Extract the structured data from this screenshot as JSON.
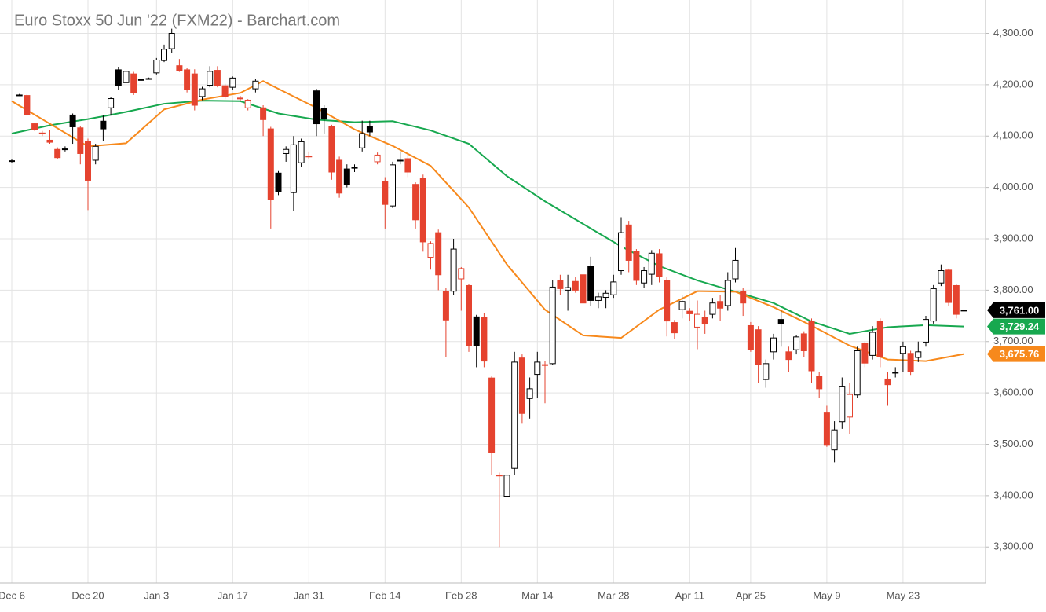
{
  "chart_data": {
    "type": "candlestick",
    "title": "Euro Stoxx 50 Jun '22 (FXM22) - Barchart.com",
    "categories": [
      "Dec 6",
      null,
      null,
      null,
      null,
      null,
      null,
      null,
      null,
      null,
      "Dec 20",
      null,
      null,
      null,
      null,
      null,
      null,
      null,
      null,
      "Jan 3",
      null,
      null,
      null,
      null,
      null,
      null,
      null,
      null,
      null,
      "Jan 17",
      null,
      null,
      null,
      null,
      null,
      null,
      null,
      null,
      null,
      "Jan 31",
      null,
      null,
      null,
      null,
      null,
      null,
      null,
      null,
      null,
      "Feb 14",
      null,
      null,
      null,
      null,
      null,
      null,
      null,
      null,
      null,
      "Feb 28",
      null,
      null,
      null,
      null,
      null,
      null,
      null,
      null,
      null,
      "Mar 14",
      null,
      null,
      null,
      null,
      null,
      null,
      null,
      null,
      null,
      "Mar 28",
      null,
      null,
      null,
      null,
      null,
      null,
      null,
      null,
      null,
      "Apr 11",
      null,
      null,
      null,
      null,
      null,
      null,
      null,
      "Apr 25",
      null,
      null,
      null,
      null,
      null,
      null,
      null,
      null,
      null,
      "May 9",
      null,
      null,
      null,
      null,
      null,
      null,
      null,
      null,
      null,
      "May 23",
      null,
      null,
      null,
      null,
      null,
      null,
      null,
      null
    ],
    "candles": {
      "open": [
        4052,
        4180,
        4179,
        4124,
        4106,
        4092,
        4074,
        4075,
        4141,
        4116,
        4089,
        4053,
        4129,
        4155,
        4229,
        4204,
        4221,
        4210,
        4212,
        4223,
        4247,
        4270,
        4237,
        4229,
        4221,
        4177,
        4199,
        4228,
        4198,
        4195,
        4174,
        4155,
        4192,
        4155,
        4114,
        4028,
        4066,
        3990,
        4048,
        4061,
        4188,
        4154,
        4118,
        4053,
        4036,
        4039,
        4077,
        4118,
        4050,
        4011,
        3964,
        4053,
        4056,
        4006,
        4017,
        3864,
        3912,
        3798,
        3798,
        3822,
        3809,
        3748,
        3747,
        3629,
        3440,
        3399,
        3453,
        3668,
        3589,
        3636,
        3655,
        3657,
        3819,
        3800,
        3817,
        3830,
        3846,
        3780,
        3786,
        3791,
        3838,
        3927,
        3875,
        3814,
        3831,
        3871,
        3819,
        3737,
        3762,
        3759,
        3728,
        3747,
        3753,
        3778,
        3770,
        3822,
        3798,
        3731,
        3723,
        3626,
        3680,
        3743,
        3680,
        3684,
        3715,
        3739,
        3633,
        3561,
        3489,
        3544,
        3553,
        3596,
        3696,
        3673,
        3739,
        3627,
        3640,
        3677,
        3677,
        3669,
        3699,
        3740,
        3814,
        3839,
        3809,
        3761
      ],
      "high": [
        4056,
        4182,
        4181,
        4126,
        4110,
        4112,
        4078,
        4080,
        4144,
        4120,
        4095,
        4085,
        4140,
        4176,
        4235,
        4228,
        4225,
        4212,
        4214,
        4252,
        4278,
        4309,
        4250,
        4233,
        4230,
        4196,
        4236,
        4236,
        4202,
        4216,
        4178,
        4172,
        4212,
        4160,
        4118,
        4032,
        4080,
        4100,
        4095,
        4070,
        4192,
        4160,
        4122,
        4060,
        4045,
        4045,
        4130,
        4130,
        4068,
        4020,
        4050,
        4070,
        4065,
        4010,
        4025,
        3895,
        3918,
        3805,
        3900,
        3845,
        3812,
        3752,
        3755,
        3632,
        3445,
        3445,
        3680,
        3675,
        3630,
        3680,
        3662,
        3820,
        3830,
        3830,
        3825,
        3840,
        3865,
        3795,
        3800,
        3830,
        3942,
        3935,
        3880,
        3845,
        3878,
        3880,
        3825,
        3742,
        3790,
        3765,
        3780,
        3760,
        3785,
        3790,
        3835,
        3882,
        3805,
        3738,
        3730,
        3665,
        3715,
        3760,
        3690,
        3712,
        3720,
        3745,
        3640,
        3575,
        3545,
        3630,
        3620,
        3690,
        3700,
        3730,
        3745,
        3640,
        3650,
        3700,
        3682,
        3700,
        3750,
        3810,
        3850,
        3842,
        3812,
        3765
      ],
      "low": [
        4048,
        4178,
        4140,
        4110,
        4100,
        4085,
        4055,
        4070,
        4085,
        4045,
        3956,
        4045,
        4090,
        4140,
        4190,
        4198,
        4180,
        4208,
        4210,
        4220,
        4244,
        4262,
        4225,
        4185,
        4150,
        4170,
        4195,
        4195,
        4172,
        4190,
        4168,
        4150,
        4185,
        4100,
        3920,
        3985,
        4050,
        3955,
        4040,
        4055,
        4100,
        4105,
        4015,
        3980,
        4000,
        4030,
        4070,
        4100,
        4045,
        3920,
        3960,
        4045,
        4020,
        3920,
        3875,
        3840,
        3800,
        3670,
        3790,
        3760,
        3680,
        3650,
        3650,
        3440,
        3300,
        3330,
        3440,
        3540,
        3550,
        3590,
        3580,
        3655,
        3790,
        3760,
        3795,
        3760,
        3770,
        3765,
        3765,
        3785,
        3830,
        3835,
        3810,
        3805,
        3810,
        3815,
        3710,
        3705,
        3745,
        3740,
        3685,
        3715,
        3745,
        3740,
        3760,
        3815,
        3750,
        3680,
        3620,
        3610,
        3665,
        3690,
        3640,
        3675,
        3670,
        3620,
        3590,
        3495,
        3465,
        3530,
        3520,
        3590,
        3650,
        3665,
        3650,
        3575,
        3630,
        3640,
        3635,
        3660,
        3690,
        3735,
        3808,
        3770,
        3745,
        3755
      ],
      "close": [
        4052,
        4180,
        4141,
        4113,
        4105,
        4088,
        4058,
        4075,
        4118,
        4066,
        4014,
        4080,
        4114,
        4173,
        4199,
        4226,
        4184,
        4210,
        4212,
        4248,
        4269,
        4300,
        4228,
        4190,
        4160,
        4192,
        4226,
        4199,
        4177,
        4213,
        4173,
        4170,
        4207,
        4132,
        3976,
        3992,
        4074,
        4083,
        4089,
        4061,
        4124,
        4133,
        4030,
        3989,
        4006,
        4039,
        4105,
        4108,
        4063,
        3967,
        4044,
        4053,
        4030,
        3937,
        3894,
        3891,
        3830,
        3742,
        3880,
        3842,
        3692,
        3692,
        3662,
        3484,
        3440,
        3440,
        3660,
        3560,
        3608,
        3660,
        3655,
        3806,
        3803,
        3805,
        3800,
        3775,
        3780,
        3787,
        3794,
        3816,
        3912,
        3858,
        3819,
        3838,
        3872,
        3827,
        3740,
        3717,
        3778,
        3754,
        3753,
        3734,
        3775,
        3765,
        3819,
        3858,
        3775,
        3685,
        3655,
        3657,
        3707,
        3734,
        3665,
        3709,
        3682,
        3643,
        3608,
        3498,
        3528,
        3613,
        3597,
        3682,
        3658,
        3718,
        3671,
        3616,
        3640,
        3690,
        3641,
        3680,
        3743,
        3803,
        3838,
        3776,
        3753,
        3761
      ],
      "up_color": "#000000",
      "down_color": "#e5432f",
      "last_label": "3,761.00"
    },
    "lines": [
      {
        "color": "#17a84f",
        "x": [
          0,
          5,
          10,
          15,
          20,
          25,
          30,
          35,
          40,
          45,
          50,
          55,
          60,
          65,
          70,
          75,
          80,
          85,
          90,
          95,
          100,
          105,
          110,
          115,
          120,
          125
        ],
        "values": [
          4105,
          4121,
          4133,
          4147,
          4163,
          4169,
          4168,
          4144,
          4132,
          4127,
          4129,
          4111,
          4085,
          4022,
          3973,
          3929,
          3885,
          3847,
          3819,
          3797,
          3775,
          3739,
          3715,
          3728,
          3732,
          3729.24
        ],
        "last_label": "3,729.24"
      },
      {
        "color": "#f7891c",
        "x": [
          0,
          5,
          10,
          15,
          20,
          25,
          30,
          33,
          35,
          40,
          45,
          50,
          55,
          60,
          65,
          70,
          75,
          80,
          85,
          90,
          95,
          100,
          105,
          110,
          115,
          120,
          125
        ],
        "values": [
          4168,
          4124,
          4080,
          4086,
          4152,
          4171,
          4184,
          4207,
          4192,
          4155,
          4113,
          4081,
          4042,
          3961,
          3850,
          3762,
          3712,
          3707,
          3762,
          3798,
          3797,
          3767,
          3731,
          3692,
          3665,
          3662,
          3675.76
        ],
        "last_label": "3,675.76"
      }
    ],
    "ylim": [
      3230,
      4365
    ],
    "yticks": [
      {
        "value": 3300,
        "label": "3,300.00"
      },
      {
        "value": 3400,
        "label": "3,400.00"
      },
      {
        "value": 3500,
        "label": "3,500.00"
      },
      {
        "value": 3600,
        "label": "3,600.00"
      },
      {
        "value": 3700,
        "label": "3,700.00"
      },
      {
        "value": 3800,
        "label": "3,800.00"
      },
      {
        "value": 3900,
        "label": "3,900.00"
      },
      {
        "value": 4000,
        "label": "4,000.00"
      },
      {
        "value": 4100,
        "label": "4,100.00"
      },
      {
        "value": 4200,
        "label": "4,200.00"
      },
      {
        "value": 4300,
        "label": "4,300.00"
      }
    ],
    "grid": true
  }
}
